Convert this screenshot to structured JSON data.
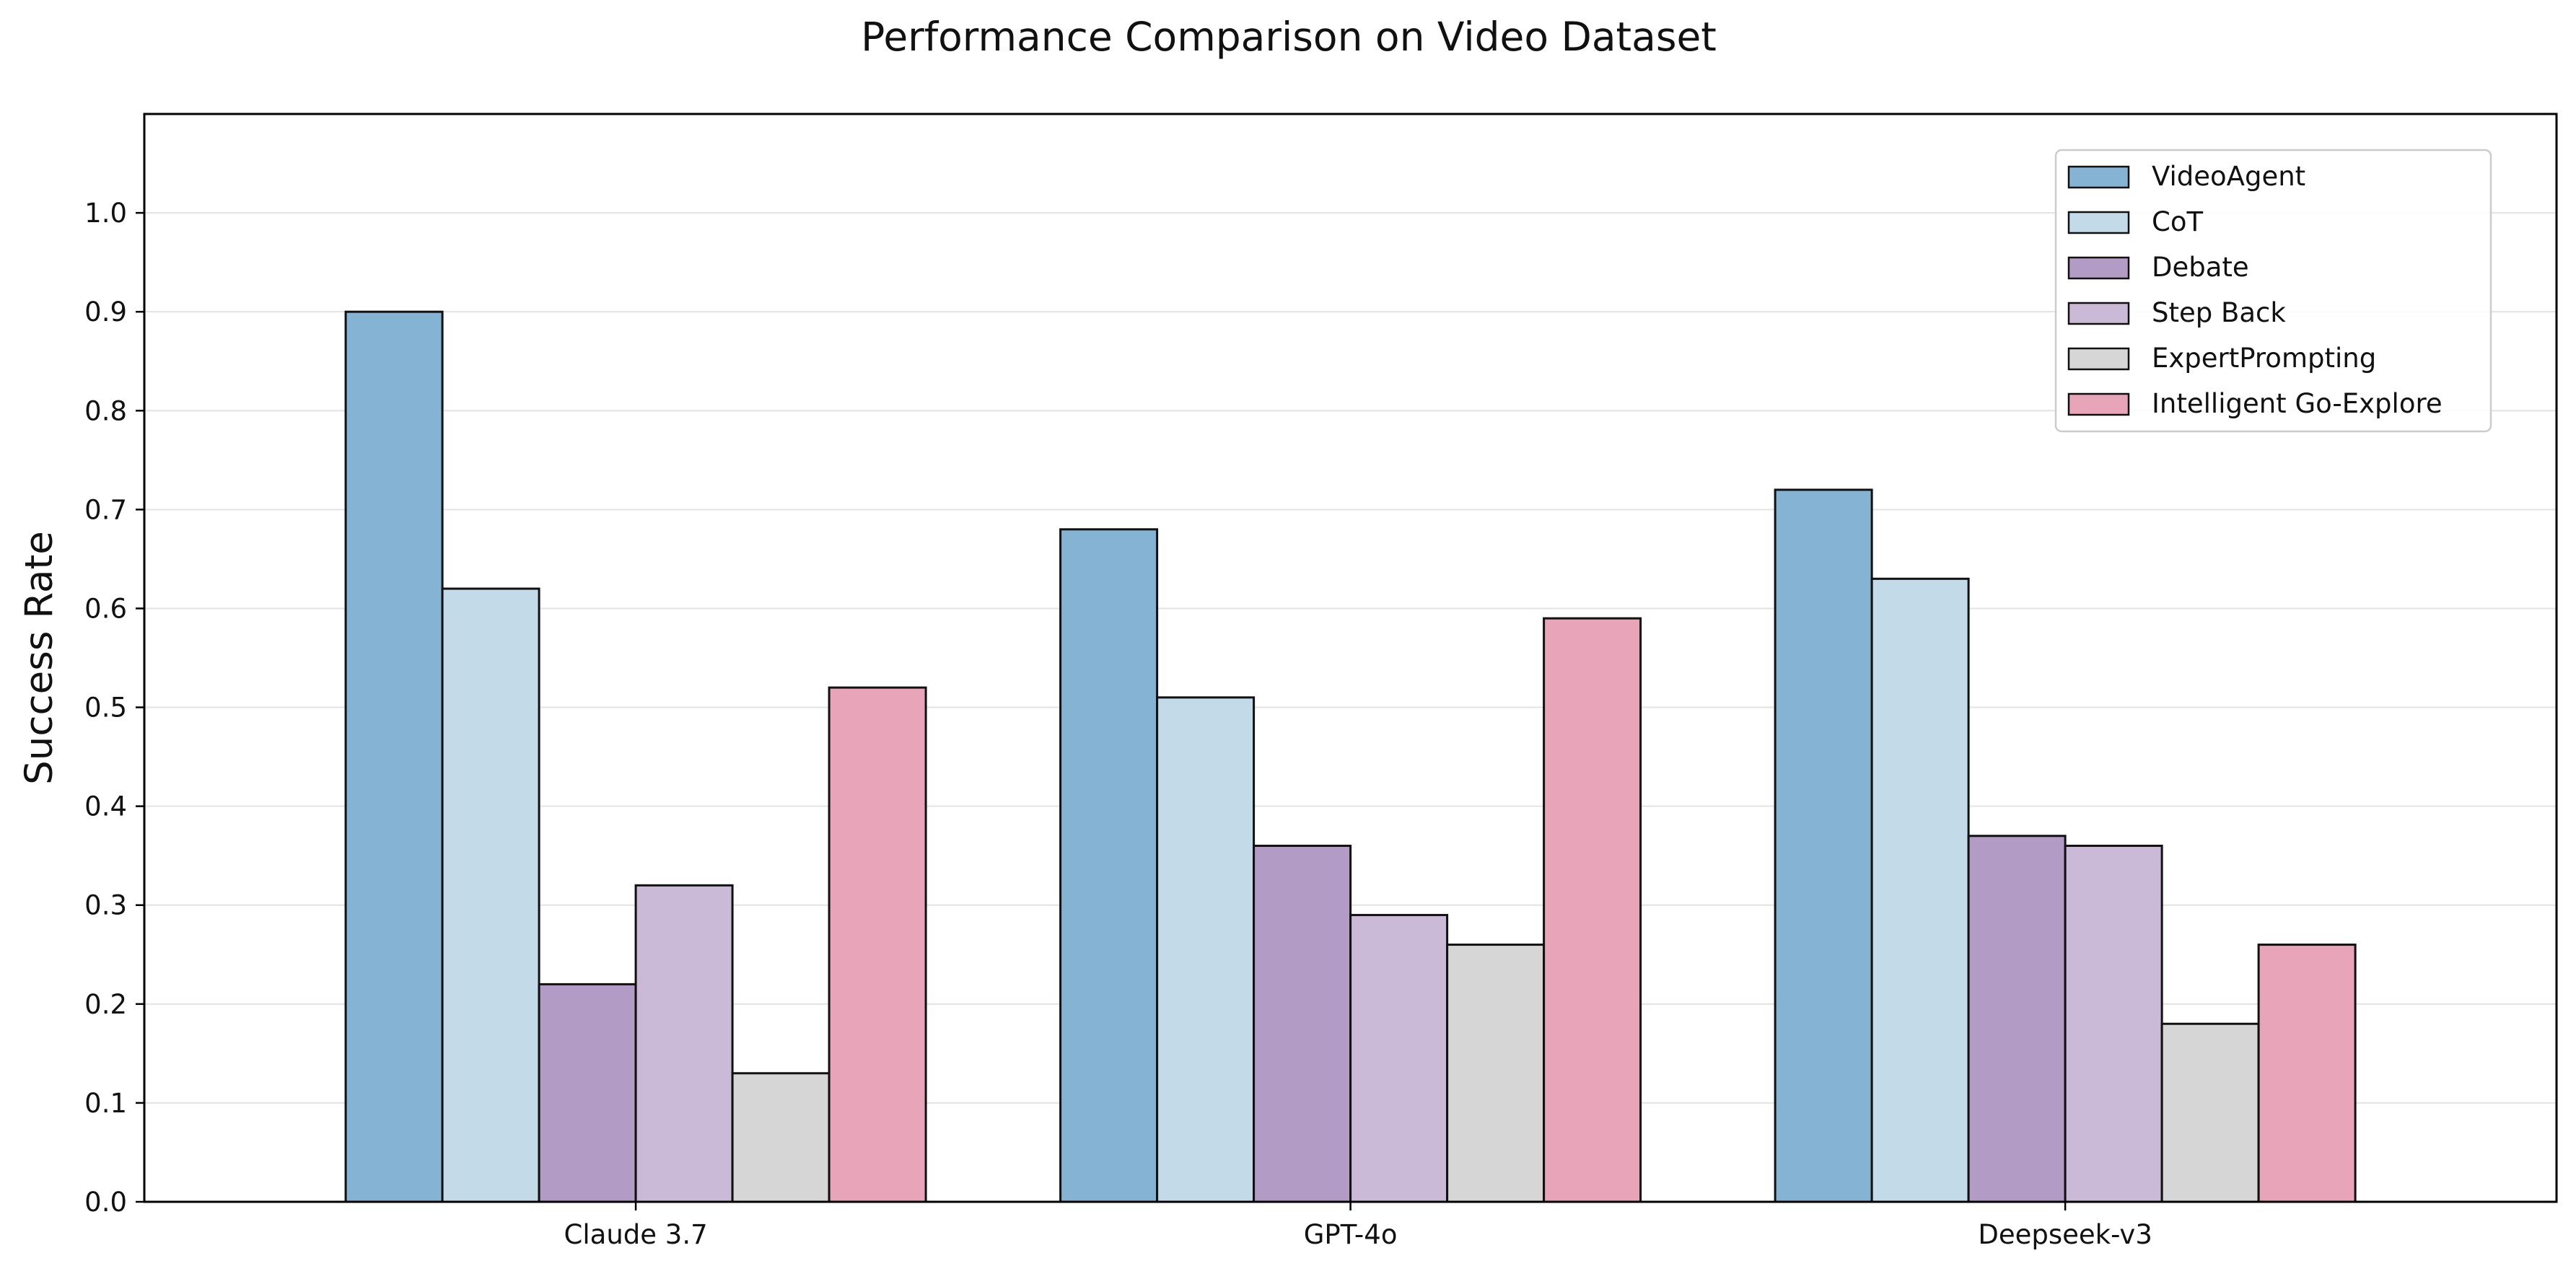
{
  "chart_data": {
    "type": "bar",
    "title": "Performance Comparison on Video Dataset",
    "xlabel": "",
    "ylabel": "Success Rate",
    "ylim": [
      0,
      1.1
    ],
    "yticks": [
      0.0,
      0.1,
      0.2,
      0.3,
      0.4,
      0.5,
      0.6,
      0.7,
      0.8,
      0.9,
      1.0
    ],
    "ytick_labels": [
      "0.0",
      "0.1",
      "0.2",
      "0.3",
      "0.4",
      "0.5",
      "0.6",
      "0.7",
      "0.8",
      "0.9",
      "1.0"
    ],
    "grid": true,
    "legend_position": "top-right",
    "categories": [
      "Claude 3.7",
      "GPT-4o",
      "Deepseek-v3"
    ],
    "series": [
      {
        "name": "VideoAgent",
        "color": "#85b3d3",
        "values": [
          0.9,
          0.68,
          0.72
        ]
      },
      {
        "name": "CoT",
        "color": "#c3dbe8",
        "values": [
          0.62,
          0.51,
          0.63
        ]
      },
      {
        "name": "Debate",
        "color": "#b29cc6",
        "values": [
          0.22,
          0.36,
          0.37
        ]
      },
      {
        "name": "Step Back",
        "color": "#cabad7",
        "values": [
          0.32,
          0.29,
          0.36
        ]
      },
      {
        "name": "ExpertPrompting",
        "color": "#d6d6d6",
        "values": [
          0.13,
          0.26,
          0.18
        ]
      },
      {
        "name": "Intelligent Go-Explore",
        "color": "#e8a4b8",
        "values": [
          0.52,
          0.59,
          0.26
        ]
      }
    ]
  }
}
